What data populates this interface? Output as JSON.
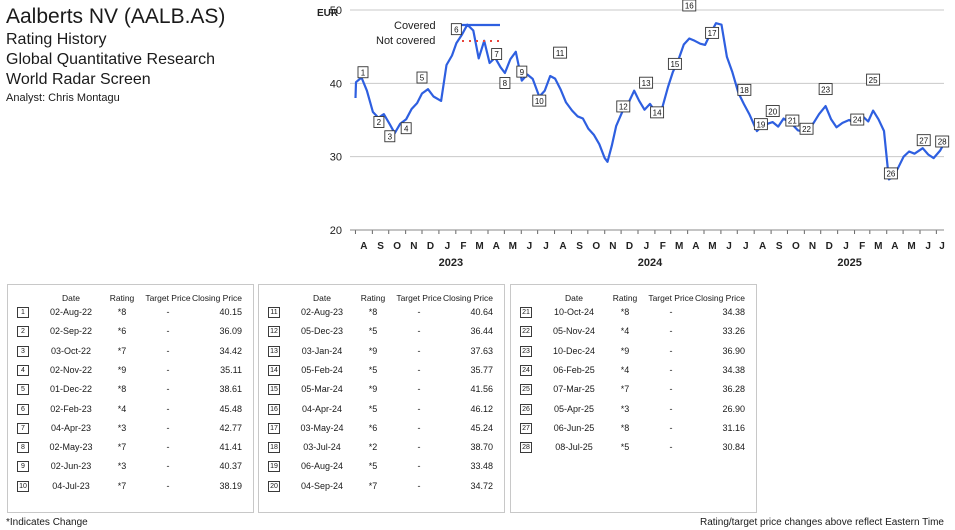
{
  "header": {
    "company": "Aalberts NV (AALB.AS)",
    "line1": "Rating History",
    "line2": "Global Quantitative Research",
    "line3": "World Radar Screen",
    "analyst": "Analyst: Chris Montagu"
  },
  "chart_data": {
    "type": "line",
    "ylabel": "EUR",
    "ylim": [
      20,
      50
    ],
    "yticks": [
      20,
      30,
      40,
      50
    ],
    "grid": "horizontal",
    "legend_position": "top-left",
    "x_month_labels": [
      "A",
      "S",
      "O",
      "N",
      "D",
      "J",
      "F",
      "M",
      "A",
      "M",
      "J",
      "J",
      "A",
      "S",
      "O",
      "N",
      "D",
      "J",
      "F",
      "M",
      "A",
      "M",
      "J",
      "J",
      "A",
      "S",
      "O",
      "N",
      "D",
      "J",
      "F",
      "M",
      "A",
      "M",
      "J",
      "J"
    ],
    "x_year_labels": [
      {
        "label": "2023",
        "at_month_index": 5
      },
      {
        "label": "2024",
        "at_month_index": 17
      },
      {
        "label": "2025",
        "at_month_index": 29
      }
    ],
    "series": [
      {
        "name": "Covered",
        "color": "#2e5fe0",
        "style": "solid",
        "points": [
          [
            "2022-08-01",
            38.0
          ],
          [
            "2022-08-02",
            40.15
          ],
          [
            "2022-08-12",
            40.8
          ],
          [
            "2022-08-22",
            39.0
          ],
          [
            "2022-09-02",
            36.09
          ],
          [
            "2022-09-12",
            35.3
          ],
          [
            "2022-09-22",
            35.8
          ],
          [
            "2022-10-03",
            34.42
          ],
          [
            "2022-10-12",
            33.2
          ],
          [
            "2022-10-22",
            34.5
          ],
          [
            "2022-11-02",
            35.11
          ],
          [
            "2022-11-12",
            36.5
          ],
          [
            "2022-11-22",
            37.3
          ],
          [
            "2022-12-01",
            38.61
          ],
          [
            "2022-12-12",
            39.2
          ],
          [
            "2022-12-22",
            38.2
          ],
          [
            "2023-01-05",
            37.6
          ],
          [
            "2023-01-15",
            42.5
          ],
          [
            "2023-01-25",
            43.8
          ],
          [
            "2023-02-02",
            45.48
          ],
          [
            "2023-02-12",
            46.6
          ],
          [
            "2023-02-22",
            48.0
          ],
          [
            "2023-03-05",
            47.2
          ],
          [
            "2023-03-15",
            43.4
          ],
          [
            "2023-03-25",
            45.8
          ],
          [
            "2023-04-04",
            42.77
          ],
          [
            "2023-04-14",
            43.5
          ],
          [
            "2023-04-24",
            42.2
          ],
          [
            "2023-05-02",
            41.41
          ],
          [
            "2023-05-12",
            43.3
          ],
          [
            "2023-05-22",
            44.3
          ],
          [
            "2023-06-02",
            40.37
          ],
          [
            "2023-06-12",
            41.2
          ],
          [
            "2023-06-22",
            40.6
          ],
          [
            "2023-07-04",
            38.19
          ],
          [
            "2023-07-14",
            39.0
          ],
          [
            "2023-07-24",
            41.0
          ],
          [
            "2023-08-02",
            40.64
          ],
          [
            "2023-08-12",
            39.2
          ],
          [
            "2023-08-22",
            37.4
          ],
          [
            "2023-09-02",
            36.3
          ],
          [
            "2023-09-12",
            35.5
          ],
          [
            "2023-09-22",
            35.2
          ],
          [
            "2023-10-02",
            33.8
          ],
          [
            "2023-10-12",
            33.0
          ],
          [
            "2023-10-22",
            31.7
          ],
          [
            "2023-11-01",
            29.8
          ],
          [
            "2023-11-06",
            29.3
          ],
          [
            "2023-11-14",
            31.5
          ],
          [
            "2023-11-22",
            34.2
          ],
          [
            "2023-12-05",
            36.44
          ],
          [
            "2023-12-15",
            37.4
          ],
          [
            "2023-12-25",
            39.0
          ],
          [
            "2024-01-03",
            37.63
          ],
          [
            "2024-01-13",
            36.4
          ],
          [
            "2024-01-23",
            37.2
          ],
          [
            "2024-02-05",
            35.77
          ],
          [
            "2024-02-15",
            36.8
          ],
          [
            "2024-02-25",
            39.5
          ],
          [
            "2024-03-05",
            41.56
          ],
          [
            "2024-03-15",
            43.2
          ],
          [
            "2024-03-25",
            45.3
          ],
          [
            "2024-04-04",
            46.12
          ],
          [
            "2024-04-14",
            45.8
          ],
          [
            "2024-04-24",
            45.4
          ],
          [
            "2024-05-03",
            45.24
          ],
          [
            "2024-05-13",
            46.8
          ],
          [
            "2024-05-23",
            48.2
          ],
          [
            "2024-06-02",
            48.0
          ],
          [
            "2024-06-12",
            43.6
          ],
          [
            "2024-06-22",
            41.5
          ],
          [
            "2024-07-03",
            38.7
          ],
          [
            "2024-07-13",
            37.2
          ],
          [
            "2024-07-23",
            35.8
          ],
          [
            "2024-08-06",
            33.48
          ],
          [
            "2024-08-16",
            34.2
          ],
          [
            "2024-08-26",
            34.5
          ],
          [
            "2024-09-04",
            34.72
          ],
          [
            "2024-09-14",
            34.1
          ],
          [
            "2024-09-24",
            35.2
          ],
          [
            "2024-10-10",
            34.38
          ],
          [
            "2024-10-20",
            33.6
          ],
          [
            "2024-10-30",
            33.4
          ],
          [
            "2024-11-05",
            33.26
          ],
          [
            "2024-11-18",
            34.6
          ],
          [
            "2024-11-28",
            35.8
          ],
          [
            "2024-12-10",
            36.9
          ],
          [
            "2024-12-20",
            35.1
          ],
          [
            "2024-12-30",
            34.0
          ],
          [
            "2025-01-10",
            34.6
          ],
          [
            "2025-01-22",
            35.0
          ],
          [
            "2025-02-06",
            34.38
          ],
          [
            "2025-02-16",
            35.5
          ],
          [
            "2025-02-26",
            34.8
          ],
          [
            "2025-03-07",
            36.28
          ],
          [
            "2025-03-17",
            35.1
          ],
          [
            "2025-03-27",
            33.5
          ],
          [
            "2025-04-05",
            26.9
          ],
          [
            "2025-04-12",
            27.2
          ],
          [
            "2025-04-22",
            28.5
          ],
          [
            "2025-05-02",
            30.0
          ],
          [
            "2025-05-12",
            30.7
          ],
          [
            "2025-05-22",
            30.4
          ],
          [
            "2025-06-06",
            31.16
          ],
          [
            "2025-06-16",
            30.3
          ],
          [
            "2025-06-26",
            29.8
          ],
          [
            "2025-07-08",
            30.84
          ],
          [
            "2025-07-12",
            31.4
          ]
        ]
      },
      {
        "name": "Not covered",
        "color": "#e8453c",
        "style": "dotted",
        "points": []
      }
    ],
    "rating_events": [
      {
        "n": "1",
        "date": "2022-08-02",
        "price": 40.15
      },
      {
        "n": "2",
        "date": "2022-09-02",
        "price": 36.09
      },
      {
        "n": "3",
        "date": "2022-10-03",
        "price": 34.42
      },
      {
        "n": "4",
        "date": "2022-11-02",
        "price": 35.11
      },
      {
        "n": "5",
        "date": "2022-12-01",
        "price": 38.61
      },
      {
        "n": "6",
        "date": "2023-02-02",
        "price": 45.48
      },
      {
        "n": "7",
        "date": "2023-04-04",
        "price": 42.77
      },
      {
        "n": "8",
        "date": "2023-05-02",
        "price": 41.41
      },
      {
        "n": "9",
        "date": "2023-06-02",
        "price": 40.37
      },
      {
        "n": "10",
        "date": "2023-07-04",
        "price": 38.19
      },
      {
        "n": "11",
        "date": "2023-08-02",
        "price": 40.64
      },
      {
        "n": "12",
        "date": "2023-12-05",
        "price": 36.44
      },
      {
        "n": "13",
        "date": "2024-01-03",
        "price": 37.63
      },
      {
        "n": "14",
        "date": "2024-02-05",
        "price": 35.77
      },
      {
        "n": "15",
        "date": "2024-03-05",
        "price": 41.56
      },
      {
        "n": "16",
        "date": "2024-04-04",
        "price": 46.12
      },
      {
        "n": "17",
        "date": "2024-05-03",
        "price": 45.24
      },
      {
        "n": "18",
        "date": "2024-07-03",
        "price": 38.7
      },
      {
        "n": "19",
        "date": "2024-08-06",
        "price": 33.48
      },
      {
        "n": "20",
        "date": "2024-09-04",
        "price": 34.72
      },
      {
        "n": "21",
        "date": "2024-10-10",
        "price": 34.38
      },
      {
        "n": "22",
        "date": "2024-11-05",
        "price": 33.26
      },
      {
        "n": "23",
        "date": "2024-12-10",
        "price": 36.9
      },
      {
        "n": "24",
        "date": "2025-02-06",
        "price": 34.38
      },
      {
        "n": "25",
        "date": "2025-03-07",
        "price": 36.28
      },
      {
        "n": "26",
        "date": "2025-04-05",
        "price": 26.9
      },
      {
        "n": "27",
        "date": "2025-06-06",
        "price": 31.16
      },
      {
        "n": "28",
        "date": "2025-07-08",
        "price": 30.84
      }
    ]
  },
  "table_headers": {
    "date": "Date",
    "rating": "Rating",
    "target": "Target Price",
    "closing": "Closing Price"
  },
  "tables": [
    [
      {
        "n": "1",
        "date": "02-Aug-22",
        "rating": "*8",
        "target": "-",
        "closing": "40.15"
      },
      {
        "n": "2",
        "date": "02-Sep-22",
        "rating": "*6",
        "target": "-",
        "closing": "36.09"
      },
      {
        "n": "3",
        "date": "03-Oct-22",
        "rating": "*7",
        "target": "-",
        "closing": "34.42"
      },
      {
        "n": "4",
        "date": "02-Nov-22",
        "rating": "*9",
        "target": "-",
        "closing": "35.11"
      },
      {
        "n": "5",
        "date": "01-Dec-22",
        "rating": "*8",
        "target": "-",
        "closing": "38.61"
      },
      {
        "n": "6",
        "date": "02-Feb-23",
        "rating": "*4",
        "target": "-",
        "closing": "45.48"
      },
      {
        "n": "7",
        "date": "04-Apr-23",
        "rating": "*3",
        "target": "-",
        "closing": "42.77"
      },
      {
        "n": "8",
        "date": "02-May-23",
        "rating": "*7",
        "target": "-",
        "closing": "41.41"
      },
      {
        "n": "9",
        "date": "02-Jun-23",
        "rating": "*3",
        "target": "-",
        "closing": "40.37"
      },
      {
        "n": "10",
        "date": "04-Jul-23",
        "rating": "*7",
        "target": "-",
        "closing": "38.19"
      }
    ],
    [
      {
        "n": "11",
        "date": "02-Aug-23",
        "rating": "*8",
        "target": "-",
        "closing": "40.64"
      },
      {
        "n": "12",
        "date": "05-Dec-23",
        "rating": "*5",
        "target": "-",
        "closing": "36.44"
      },
      {
        "n": "13",
        "date": "03-Jan-24",
        "rating": "*9",
        "target": "-",
        "closing": "37.63"
      },
      {
        "n": "14",
        "date": "05-Feb-24",
        "rating": "*5",
        "target": "-",
        "closing": "35.77"
      },
      {
        "n": "15",
        "date": "05-Mar-24",
        "rating": "*9",
        "target": "-",
        "closing": "41.56"
      },
      {
        "n": "16",
        "date": "04-Apr-24",
        "rating": "*5",
        "target": "-",
        "closing": "46.12"
      },
      {
        "n": "17",
        "date": "03-May-24",
        "rating": "*6",
        "target": "-",
        "closing": "45.24"
      },
      {
        "n": "18",
        "date": "03-Jul-24",
        "rating": "*2",
        "target": "-",
        "closing": "38.70"
      },
      {
        "n": "19",
        "date": "06-Aug-24",
        "rating": "*5",
        "target": "-",
        "closing": "33.48"
      },
      {
        "n": "20",
        "date": "04-Sep-24",
        "rating": "*7",
        "target": "-",
        "closing": "34.72"
      }
    ],
    [
      {
        "n": "21",
        "date": "10-Oct-24",
        "rating": "*8",
        "target": "-",
        "closing": "34.38"
      },
      {
        "n": "22",
        "date": "05-Nov-24",
        "rating": "*4",
        "target": "-",
        "closing": "33.26"
      },
      {
        "n": "23",
        "date": "10-Dec-24",
        "rating": "*9",
        "target": "-",
        "closing": "36.90"
      },
      {
        "n": "24",
        "date": "06-Feb-25",
        "rating": "*4",
        "target": "-",
        "closing": "34.38"
      },
      {
        "n": "25",
        "date": "07-Mar-25",
        "rating": "*7",
        "target": "-",
        "closing": "36.28"
      },
      {
        "n": "26",
        "date": "05-Apr-25",
        "rating": "*3",
        "target": "-",
        "closing": "26.90"
      },
      {
        "n": "27",
        "date": "06-Jun-25",
        "rating": "*8",
        "target": "-",
        "closing": "31.16"
      },
      {
        "n": "28",
        "date": "08-Jul-25",
        "rating": "*5",
        "target": "-",
        "closing": "30.84"
      }
    ]
  ],
  "footer": {
    "left": "*Indicates Change",
    "right": "Rating/target price changes above reflect Eastern Time"
  }
}
